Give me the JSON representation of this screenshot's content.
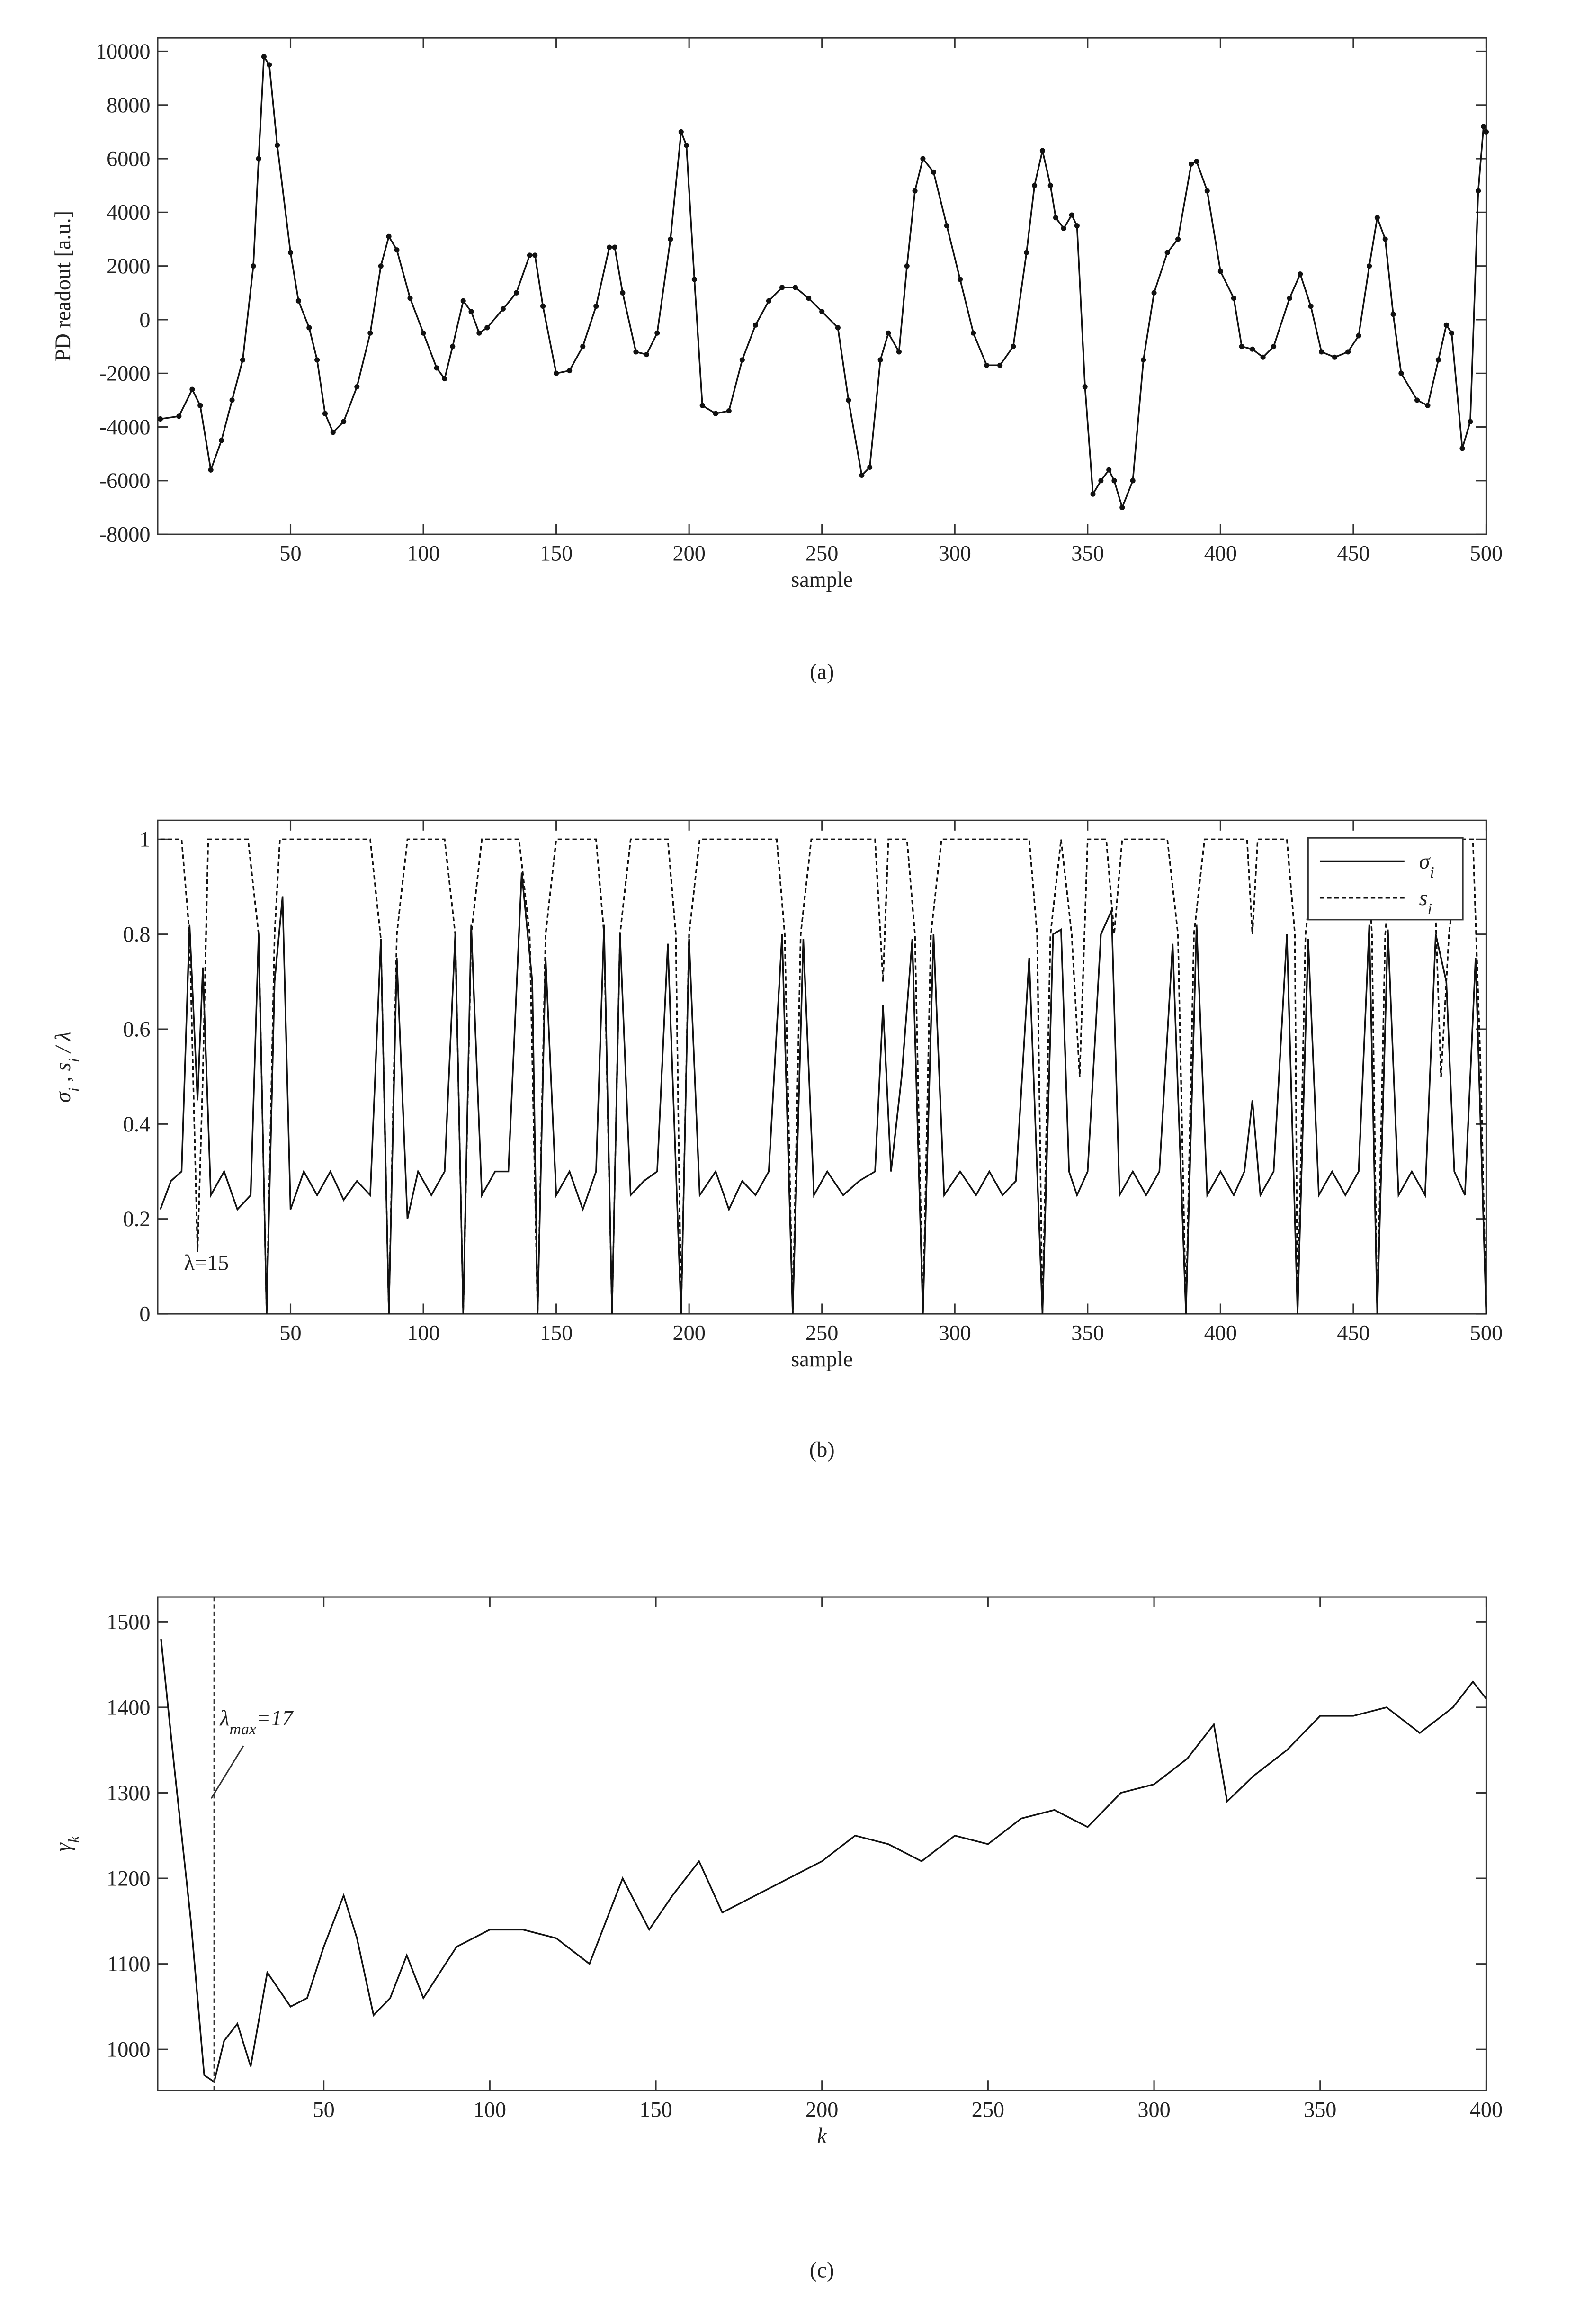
{
  "chart_data": [
    {
      "type": "line",
      "caption": "(a)",
      "xlabel": "sample",
      "ylabel": [
        "PD readout [a.u.]"
      ],
      "markers": true,
      "xlim": [
        0,
        500
      ],
      "xticks": [
        50,
        100,
        150,
        200,
        250,
        300,
        350,
        400,
        450,
        500
      ],
      "ylim": [
        -8000,
        10500
      ],
      "yticks": [
        -8000,
        -6000,
        -4000,
        -2000,
        0,
        2000,
        4000,
        6000,
        8000,
        10000
      ],
      "series": [
        {
          "color": "#111111",
          "dash": false,
          "x": [
            1,
            8,
            13,
            16,
            20,
            24,
            28,
            32,
            36,
            38,
            40,
            42,
            45,
            50,
            53,
            57,
            60,
            63,
            66,
            70,
            75,
            80,
            84,
            87,
            90,
            95,
            100,
            105,
            108,
            111,
            115,
            118,
            121,
            124,
            130,
            135,
            140,
            142,
            145,
            150,
            155,
            160,
            165,
            170,
            172,
            175,
            180,
            184,
            188,
            193,
            197,
            199,
            202,
            205,
            210,
            215,
            220,
            225,
            230,
            235,
            240,
            245,
            250,
            256,
            260,
            265,
            268,
            272,
            275,
            279,
            282,
            285,
            288,
            292,
            297,
            302,
            307,
            312,
            317,
            322,
            327,
            330,
            333,
            336,
            338,
            341,
            344,
            346,
            349,
            352,
            355,
            358,
            360,
            363,
            367,
            371,
            375,
            380,
            384,
            389,
            391,
            395,
            400,
            405,
            408,
            412,
            416,
            420,
            426,
            430,
            434,
            438,
            443,
            448,
            452,
            456,
            459,
            462,
            465,
            468,
            474,
            478,
            482,
            485,
            487,
            491,
            494,
            497,
            499,
            500
          ],
          "values": [
            -3700,
            -3600,
            -2600,
            -3200,
            -5600,
            -4500,
            -3000,
            -1500,
            2000,
            6000,
            9800,
            9500,
            6500,
            2500,
            700,
            -300,
            -1500,
            -3500,
            -4200,
            -3800,
            -2500,
            -500,
            2000,
            3100,
            2600,
            800,
            -500,
            -1800,
            -2200,
            -1000,
            700,
            300,
            -500,
            -300,
            400,
            1000,
            2400,
            2400,
            500,
            -2000,
            -1900,
            -1000,
            500,
            2700,
            2700,
            1000,
            -1200,
            -1300,
            -500,
            3000,
            7000,
            6500,
            1500,
            -3200,
            -3500,
            -3400,
            -1500,
            -200,
            700,
            1200,
            1200,
            800,
            300,
            -300,
            -3000,
            -5800,
            -5500,
            -1500,
            -500,
            -1200,
            2000,
            4800,
            6000,
            5500,
            3500,
            1500,
            -500,
            -1700,
            -1700,
            -1000,
            2500,
            5000,
            6300,
            5000,
            3800,
            3400,
            3900,
            3500,
            -2500,
            -6500,
            -6000,
            -5600,
            -6000,
            -7000,
            -6000,
            -1500,
            1000,
            2500,
            3000,
            5800,
            5900,
            4800,
            1800,
            800,
            -1000,
            -1100,
            -1400,
            -1000,
            800,
            1700,
            500,
            -1200,
            -1400,
            -1200,
            -600,
            2000,
            3800,
            3000,
            200,
            -2000,
            -3000,
            -3200,
            -1500,
            -200,
            -500,
            -4800,
            -3800,
            4800,
            7200,
            7000
          ]
        }
      ]
    },
    {
      "type": "line",
      "caption": "(b)",
      "xlabel": "sample",
      "ylabel": [
        "σ",
        "i",
        " , s",
        "i",
        " / λ"
      ],
      "annotation": "λ=15",
      "legend": "upper right",
      "xlim": [
        0,
        500
      ],
      "xticks": [
        50,
        100,
        150,
        200,
        250,
        300,
        350,
        400,
        450,
        500
      ],
      "ylim": [
        0,
        1.04
      ],
      "yticks": [
        0,
        0.2,
        0.4,
        0.6,
        0.8,
        1
      ],
      "series": [
        {
          "name": "σi",
          "color": "#111111",
          "dash": false,
          "x": [
            1,
            5,
            9,
            12,
            15,
            17,
            20,
            25,
            30,
            35,
            38,
            41,
            44,
            47,
            50,
            55,
            60,
            65,
            70,
            75,
            80,
            84,
            87,
            90,
            94,
            98,
            103,
            108,
            112,
            115,
            118,
            122,
            127,
            132,
            137,
            141,
            143,
            146,
            150,
            155,
            160,
            165,
            168,
            171,
            174,
            178,
            183,
            188,
            192,
            197,
            200,
            204,
            210,
            215,
            220,
            225,
            230,
            235,
            239,
            243,
            247,
            252,
            258,
            264,
            270,
            273,
            276,
            280,
            284,
            288,
            292,
            296,
            302,
            308,
            313,
            318,
            323,
            328,
            333,
            337,
            340,
            343,
            346,
            350,
            355,
            359,
            362,
            367,
            372,
            377,
            382,
            387,
            391,
            395,
            400,
            405,
            409,
            412,
            415,
            420,
            425,
            429,
            433,
            437,
            442,
            447,
            452,
            456,
            459,
            463,
            467,
            472,
            477,
            481,
            485,
            488,
            492,
            496,
            500
          ],
          "values": [
            0.22,
            0.28,
            0.3,
            0.82,
            0.45,
            0.73,
            0.25,
            0.3,
            0.22,
            0.25,
            0.8,
            0,
            0.7,
            0.88,
            0.22,
            0.3,
            0.25,
            0.3,
            0.24,
            0.28,
            0.25,
            0.79,
            0,
            0.75,
            0.2,
            0.3,
            0.25,
            0.3,
            0.8,
            0,
            0.82,
            0.25,
            0.3,
            0.3,
            0.93,
            0.7,
            0,
            0.75,
            0.25,
            0.3,
            0.22,
            0.3,
            0.82,
            0,
            0.8,
            0.25,
            0.28,
            0.3,
            0.78,
            0,
            0.79,
            0.25,
            0.3,
            0.22,
            0.28,
            0.25,
            0.3,
            0.8,
            0,
            0.79,
            0.25,
            0.3,
            0.25,
            0.28,
            0.3,
            0.65,
            0.3,
            0.5,
            0.79,
            0,
            0.8,
            0.25,
            0.3,
            0.25,
            0.3,
            0.25,
            0.28,
            0.75,
            0,
            0.8,
            0.81,
            0.3,
            0.25,
            0.3,
            0.8,
            0.85,
            0.25,
            0.3,
            0.25,
            0.3,
            0.78,
            0,
            0.82,
            0.25,
            0.3,
            0.25,
            0.3,
            0.45,
            0.25,
            0.3,
            0.8,
            0,
            0.79,
            0.25,
            0.3,
            0.25,
            0.3,
            0.82,
            0,
            0.81,
            0.25,
            0.3,
            0.25,
            0.8,
            0.7,
            0.3,
            0.25,
            0.75,
            0
          ]
        },
        {
          "name": "si",
          "color": "#111111",
          "dash": true,
          "x": [
            1,
            9,
            12,
            15,
            17,
            19,
            34,
            38,
            41,
            44,
            46,
            80,
            84,
            87,
            90,
            94,
            108,
            112,
            115,
            118,
            122,
            136,
            140,
            143,
            146,
            150,
            165,
            168,
            171,
            174,
            178,
            192,
            195,
            197,
            200,
            204,
            233,
            236,
            239,
            242,
            246,
            270,
            273,
            275,
            282,
            285,
            288,
            291,
            295,
            328,
            331,
            333,
            336,
            340,
            344,
            347,
            350,
            357,
            360,
            363,
            380,
            384,
            387,
            390,
            394,
            410,
            412,
            414,
            425,
            428,
            429,
            432,
            436,
            455,
            457,
            459,
            462,
            465,
            480,
            483,
            486,
            490,
            495,
            498,
            500
          ],
          "values": [
            1,
            1,
            0.8,
            0.13,
            0.5,
            1,
            1,
            0.8,
            0,
            0.8,
            1,
            1,
            0.79,
            0,
            0.8,
            1,
            1,
            0.8,
            0,
            0.8,
            1,
            1,
            0.8,
            0,
            0.8,
            1,
            1,
            0.8,
            0,
            0.8,
            1,
            1,
            0.8,
            0,
            0.8,
            1,
            1,
            0.8,
            0,
            0.8,
            1,
            1,
            0.7,
            1,
            1,
            0.8,
            0,
            0.8,
            1,
            1,
            0.8,
            0,
            0.8,
            1,
            0.8,
            0.5,
            1,
            1,
            0.8,
            1,
            1,
            0.8,
            0,
            0.8,
            1,
            1,
            0.8,
            1,
            1,
            0.8,
            0,
            0.8,
            1,
            1,
            0.8,
            0,
            0.8,
            1,
            1,
            0.5,
            0.8,
            1,
            1,
            0.5,
            0
          ]
        }
      ]
    },
    {
      "type": "line",
      "caption": "(c)",
      "xlabel": "k",
      "ylabel": [
        "γ",
        "k"
      ],
      "annotation": {
        "x": 17,
        "label": [
          "λ",
          "max",
          "=17"
        ]
      },
      "xlim": [
        0,
        400
      ],
      "xticks": [
        50,
        100,
        150,
        200,
        250,
        300,
        350,
        400
      ],
      "ylim": [
        952,
        1529
      ],
      "yticks": [
        1000,
        1100,
        1200,
        1300,
        1400,
        1500
      ],
      "series": [
        {
          "color": "#111111",
          "dash": false,
          "x": [
            1,
            5,
            10,
            14,
            17,
            20,
            24,
            28,
            33,
            40,
            45,
            50,
            56,
            60,
            65,
            70,
            75,
            80,
            90,
            100,
            110,
            120,
            130,
            140,
            148,
            155,
            163,
            170,
            180,
            190,
            200,
            210,
            220,
            230,
            240,
            250,
            260,
            270,
            280,
            290,
            300,
            310,
            318,
            322,
            330,
            340,
            350,
            360,
            370,
            380,
            390,
            396,
            400
          ],
          "values": [
            1480,
            1330,
            1150,
            970,
            962,
            1010,
            1030,
            980,
            1090,
            1050,
            1060,
            1120,
            1180,
            1130,
            1040,
            1060,
            1110,
            1060,
            1120,
            1140,
            1140,
            1130,
            1100,
            1200,
            1140,
            1180,
            1220,
            1160,
            1180,
            1200,
            1220,
            1250,
            1240,
            1220,
            1250,
            1240,
            1270,
            1280,
            1260,
            1300,
            1310,
            1340,
            1380,
            1290,
            1320,
            1350,
            1390,
            1390,
            1400,
            1370,
            1400,
            1430,
            1410
          ]
        }
      ]
    }
  ]
}
